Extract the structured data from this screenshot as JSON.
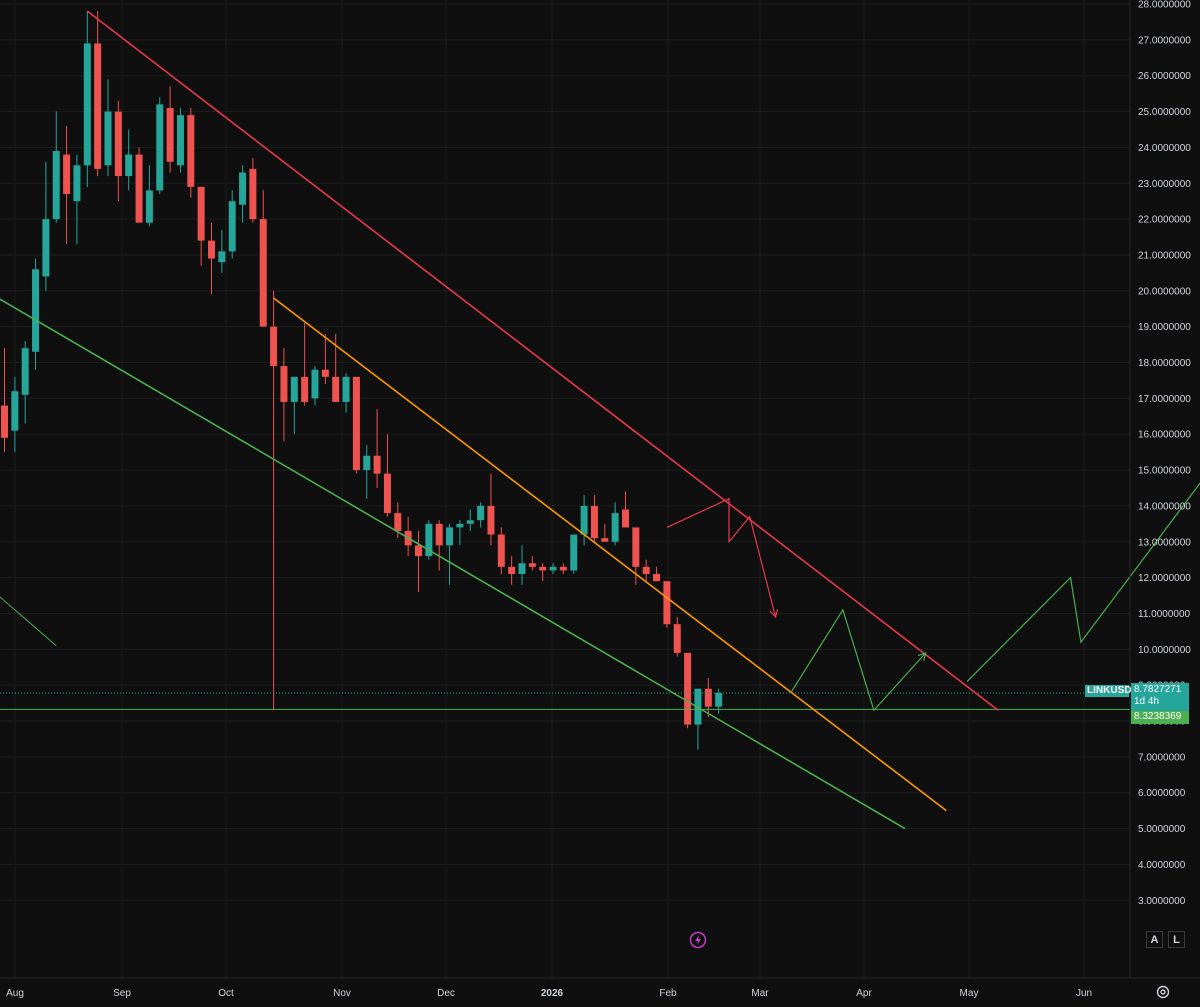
{
  "symbol": "LINKUSD",
  "last_price": "8.7827271",
  "countdown": "1d 4h",
  "line_price": "8.3238369",
  "buttons": {
    "auto": "A",
    "log": "L"
  },
  "colors": {
    "up": "#26a69a",
    "down": "#ef5350",
    "red_line": "#e8394d",
    "orange_line": "#ff9800",
    "green_line": "#4caf50"
  },
  "chart_data": {
    "type": "candlestick",
    "timeframe": "weekly",
    "x_axis_labels": [
      "Aug",
      "Sep",
      "Oct",
      "Nov",
      "Dec",
      "2026",
      "Feb",
      "Mar",
      "Apr",
      "May",
      "Jun"
    ],
    "y_ticks": [
      "28.0000000",
      "27.0000000",
      "26.0000000",
      "25.0000000",
      "24.0000000",
      "23.0000000",
      "22.0000000",
      "21.0000000",
      "20.0000000",
      "19.0000000",
      "18.0000000",
      "17.0000000",
      "16.0000000",
      "15.0000000",
      "14.0000000",
      "13.0000000",
      "12.0000000",
      "11.0000000",
      "10.0000000",
      "9.0000000",
      "8.0000000",
      "7.0000000",
      "6.0000000",
      "5.0000000",
      "4.0000000",
      "3.0000000"
    ],
    "ylim": [
      2.3,
      28.1
    ],
    "candles": [
      {
        "o": 16.8,
        "h": 18.4,
        "l": 15.5,
        "c": 15.9
      },
      {
        "o": 16.1,
        "h": 17.6,
        "l": 15.5,
        "c": 17.2
      },
      {
        "o": 17.1,
        "h": 18.6,
        "l": 16.3,
        "c": 18.4
      },
      {
        "o": 18.3,
        "h": 20.9,
        "l": 17.8,
        "c": 20.6
      },
      {
        "o": 20.4,
        "h": 23.6,
        "l": 20.0,
        "c": 22.0
      },
      {
        "o": 22.0,
        "h": 25.0,
        "l": 21.9,
        "c": 23.9
      },
      {
        "o": 23.8,
        "h": 24.6,
        "l": 21.3,
        "c": 22.7
      },
      {
        "o": 22.5,
        "h": 23.8,
        "l": 21.3,
        "c": 23.5
      },
      {
        "o": 23.5,
        "h": 27.8,
        "l": 22.9,
        "c": 26.9
      },
      {
        "o": 26.9,
        "h": 27.8,
        "l": 23.2,
        "c": 23.4
      },
      {
        "o": 23.5,
        "h": 25.9,
        "l": 23.2,
        "c": 25.0
      },
      {
        "o": 25.0,
        "h": 25.3,
        "l": 22.5,
        "c": 23.2
      },
      {
        "o": 23.2,
        "h": 24.5,
        "l": 22.8,
        "c": 23.8
      },
      {
        "o": 23.8,
        "h": 24.0,
        "l": 22.0,
        "c": 21.9
      },
      {
        "o": 21.9,
        "h": 23.5,
        "l": 21.8,
        "c": 22.8
      },
      {
        "o": 22.8,
        "h": 25.4,
        "l": 22.7,
        "c": 25.2
      },
      {
        "o": 25.1,
        "h": 25.7,
        "l": 23.3,
        "c": 23.6
      },
      {
        "o": 23.5,
        "h": 25.1,
        "l": 23.3,
        "c": 24.9
      },
      {
        "o": 24.9,
        "h": 25.1,
        "l": 22.6,
        "c": 22.9
      },
      {
        "o": 22.9,
        "h": 22.9,
        "l": 20.7,
        "c": 21.4
      },
      {
        "o": 21.4,
        "h": 21.9,
        "l": 19.9,
        "c": 20.9
      },
      {
        "o": 20.8,
        "h": 21.7,
        "l": 20.5,
        "c": 21.1
      },
      {
        "o": 21.1,
        "h": 22.8,
        "l": 20.9,
        "c": 22.5
      },
      {
        "o": 22.4,
        "h": 23.5,
        "l": 21.9,
        "c": 23.3
      },
      {
        "o": 23.4,
        "h": 23.7,
        "l": 21.9,
        "c": 22.0
      },
      {
        "o": 22.0,
        "h": 22.8,
        "l": 19.0,
        "c": 19.0
      },
      {
        "o": 19.0,
        "h": 20.0,
        "l": 8.3,
        "c": 17.9
      },
      {
        "o": 17.9,
        "h": 18.4,
        "l": 15.8,
        "c": 16.9
      },
      {
        "o": 16.9,
        "h": 17.6,
        "l": 16.0,
        "c": 17.6
      },
      {
        "o": 17.6,
        "h": 19.1,
        "l": 16.8,
        "c": 16.9
      },
      {
        "o": 17.0,
        "h": 17.9,
        "l": 16.8,
        "c": 17.8
      },
      {
        "o": 17.8,
        "h": 18.8,
        "l": 17.4,
        "c": 17.6
      },
      {
        "o": 17.6,
        "h": 18.8,
        "l": 16.9,
        "c": 16.9
      },
      {
        "o": 16.9,
        "h": 17.7,
        "l": 16.6,
        "c": 17.6
      },
      {
        "o": 17.6,
        "h": 17.5,
        "l": 14.9,
        "c": 15.0
      },
      {
        "o": 15.0,
        "h": 15.7,
        "l": 14.2,
        "c": 15.4
      },
      {
        "o": 15.4,
        "h": 16.7,
        "l": 14.5,
        "c": 14.9
      },
      {
        "o": 14.9,
        "h": 16.0,
        "l": 13.7,
        "c": 13.8
      },
      {
        "o": 13.8,
        "h": 14.1,
        "l": 13.1,
        "c": 13.3
      },
      {
        "o": 13.3,
        "h": 13.7,
        "l": 12.6,
        "c": 12.9
      },
      {
        "o": 12.9,
        "h": 13.3,
        "l": 11.6,
        "c": 12.6
      },
      {
        "o": 12.6,
        "h": 13.6,
        "l": 12.5,
        "c": 13.5
      },
      {
        "o": 13.5,
        "h": 13.6,
        "l": 12.2,
        "c": 12.9
      },
      {
        "o": 12.9,
        "h": 13.5,
        "l": 11.8,
        "c": 13.4
      },
      {
        "o": 13.4,
        "h": 13.6,
        "l": 12.9,
        "c": 13.5
      },
      {
        "o": 13.5,
        "h": 13.9,
        "l": 13.3,
        "c": 13.6
      },
      {
        "o": 13.6,
        "h": 14.1,
        "l": 13.4,
        "c": 14.0
      },
      {
        "o": 14.0,
        "h": 14.9,
        "l": 12.9,
        "c": 13.2
      },
      {
        "o": 13.2,
        "h": 13.4,
        "l": 12.1,
        "c": 12.3
      },
      {
        "o": 12.3,
        "h": 12.6,
        "l": 11.8,
        "c": 12.1
      },
      {
        "o": 12.1,
        "h": 12.9,
        "l": 11.8,
        "c": 12.4
      },
      {
        "o": 12.4,
        "h": 12.6,
        "l": 12.2,
        "c": 12.3
      },
      {
        "o": 12.3,
        "h": 12.4,
        "l": 11.9,
        "c": 12.2
      },
      {
        "o": 12.2,
        "h": 12.4,
        "l": 12.1,
        "c": 12.3
      },
      {
        "o": 12.3,
        "h": 12.4,
        "l": 12.1,
        "c": 12.2
      },
      {
        "o": 12.2,
        "h": 13.2,
        "l": 12.1,
        "c": 13.2
      },
      {
        "o": 13.2,
        "h": 14.3,
        "l": 12.9,
        "c": 14.0
      },
      {
        "o": 14.0,
        "h": 14.3,
        "l": 13.0,
        "c": 13.1
      },
      {
        "o": 13.1,
        "h": 13.5,
        "l": 13.0,
        "c": 13.0
      },
      {
        "o": 13.0,
        "h": 14.1,
        "l": 12.9,
        "c": 13.8
      },
      {
        "o": 13.9,
        "h": 14.4,
        "l": 13.4,
        "c": 13.4
      },
      {
        "o": 13.4,
        "h": 13.4,
        "l": 11.8,
        "c": 12.3
      },
      {
        "o": 12.3,
        "h": 12.5,
        "l": 11.9,
        "c": 12.1
      },
      {
        "o": 12.1,
        "h": 12.3,
        "l": 11.9,
        "c": 11.9
      },
      {
        "o": 11.9,
        "h": 11.9,
        "l": 10.6,
        "c": 10.7
      },
      {
        "o": 10.7,
        "h": 10.9,
        "l": 9.8,
        "c": 9.9
      },
      {
        "o": 9.9,
        "h": 9.9,
        "l": 7.8,
        "c": 7.9
      },
      {
        "o": 7.9,
        "h": 8.9,
        "l": 7.2,
        "c": 8.9
      },
      {
        "o": 8.9,
        "h": 9.2,
        "l": 8.1,
        "c": 8.4
      },
      {
        "o": 8.4,
        "h": 8.9,
        "l": 8.2,
        "c": 8.78
      }
    ],
    "horizontal_lines": [
      8.3238369,
      8.7827271
    ],
    "annotations": [
      {
        "name": "red-resistance-line",
        "color": "red",
        "from": [
          8,
          27.8
        ],
        "to": [
          96,
          8.3
        ]
      },
      {
        "name": "orange-trend-line",
        "color": "orange",
        "from": [
          26,
          19.8
        ],
        "to": [
          91,
          5.5
        ]
      },
      {
        "name": "green-support-line",
        "color": "green",
        "from": [
          -3,
          20.2
        ],
        "to": [
          87,
          5.0
        ]
      },
      {
        "name": "green-short-line",
        "color": "green",
        "from": [
          -3,
          12.1
        ],
        "to": [
          5,
          10.1
        ]
      },
      {
        "name": "red-projection-path",
        "color": "red",
        "points": [
          [
            64,
            13.4
          ],
          [
            70,
            14.2
          ],
          [
            70,
            13.0
          ],
          [
            72,
            13.7
          ],
          [
            74.5,
            10.9
          ]
        ]
      },
      {
        "name": "green-projection-path",
        "color": "green",
        "points": [
          [
            76,
            8.8
          ],
          [
            81,
            11.1
          ],
          [
            84,
            8.3
          ],
          [
            89,
            9.9
          ]
        ]
      },
      {
        "name": "green-long-projection-path",
        "color": "green",
        "points": [
          [
            93,
            9.1
          ],
          [
            103,
            12.0
          ],
          [
            104,
            10.2
          ],
          [
            124,
            17.9
          ]
        ]
      }
    ]
  }
}
